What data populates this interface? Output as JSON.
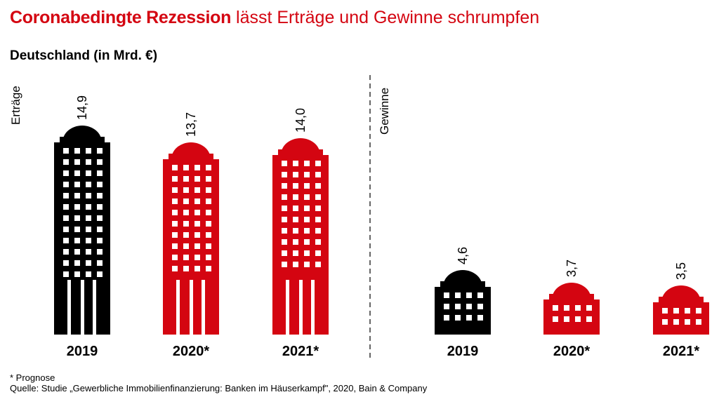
{
  "header": {
    "title_highlight": "Coronabedingte Rezession",
    "title_rest": "lässt Erträge und Gewinne schrumpfen",
    "subtitle": "Deutschland (in Mrd. €)"
  },
  "footer": {
    "footnote": "* Prognose",
    "source": "Quelle: Studie „Gewerbliche Immobilienfinanzierung: Banken im Häuserkampf\", 2020, Bain & Company"
  },
  "colors": {
    "black": "#000000",
    "red": "#d40511"
  },
  "chart_data": [
    {
      "type": "bar",
      "group_label": "Erträge",
      "categories": [
        "2019",
        "2020*",
        "2021*"
      ],
      "values": [
        14.9,
        13.7,
        14.0
      ],
      "value_labels": [
        "14,9",
        "13,7",
        "14,0"
      ],
      "colors": [
        "black",
        "red",
        "red"
      ]
    },
    {
      "type": "bar",
      "group_label": "Gewinne",
      "categories": [
        "2019",
        "2020*",
        "2021*"
      ],
      "values": [
        4.6,
        3.7,
        3.5
      ],
      "value_labels": [
        "4,6",
        "3,7",
        "3,5"
      ],
      "colors": [
        "black",
        "red",
        "red"
      ]
    }
  ]
}
